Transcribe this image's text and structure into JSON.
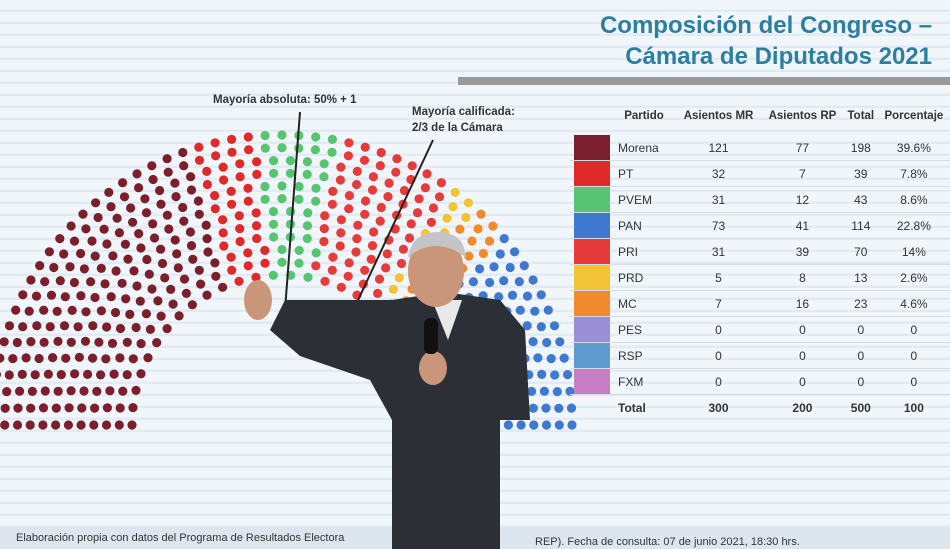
{
  "slide": {
    "title_line1": "Composición del Congreso –",
    "title_line2": "Cámara de Diputados 2021",
    "annotation_majority": "Mayoría absoluta: 50% + 1",
    "annotation_qualified_line1": "Mayoría calificada:",
    "annotation_qualified_line2": "2/3 de la Cámara",
    "footer_note": "Elaboración propia con datos del Programa de Resultados Electora",
    "footer_date": "REP). Fecha de consulta: 07 de junio 2021, 18:30 hrs."
  },
  "table": {
    "headers": {
      "party": "Partido",
      "mr": "Asientos MR",
      "rp": "Asientos RP",
      "total": "Total",
      "pct": "Porcentaje"
    },
    "rows": [
      {
        "party": "Morena",
        "mr": "121",
        "rp": "77",
        "total": "198",
        "pct": "39.6%",
        "color": "#7b1f2c"
      },
      {
        "party": "PT",
        "mr": "32",
        "rp": "7",
        "total": "39",
        "pct": "7.8%",
        "color": "#e02a2a"
      },
      {
        "party": "PVEM",
        "mr": "31",
        "rp": "12",
        "total": "43",
        "pct": "8.6%",
        "color": "#57c472"
      },
      {
        "party": "PAN",
        "mr": "73",
        "rp": "41",
        "total": "114",
        "pct": "22.8%",
        "color": "#3e79cf"
      },
      {
        "party": "PRI",
        "mr": "31",
        "rp": "39",
        "total": "70",
        "pct": "14%",
        "color": "#e53b3b"
      },
      {
        "party": "PRD",
        "mr": "5",
        "rp": "8",
        "total": "13",
        "pct": "2.6%",
        "color": "#f2c335"
      },
      {
        "party": "MC",
        "mr": "7",
        "rp": "16",
        "total": "23",
        "pct": "4.6%",
        "color": "#f08a2c"
      },
      {
        "party": "PES",
        "mr": "0",
        "rp": "0",
        "total": "0",
        "pct": "0",
        "color": "#9a8ed4"
      },
      {
        "party": "RSP",
        "mr": "0",
        "rp": "0",
        "total": "0",
        "pct": "0",
        "color": "#5e9bd1"
      },
      {
        "party": "FXM",
        "mr": "0",
        "rp": "0",
        "total": "0",
        "pct": "0",
        "color": "#c77ec4"
      }
    ],
    "total_row": {
      "label": "Total",
      "mr": "300",
      "rp": "200",
      "total": "500",
      "pct": "100"
    }
  },
  "seat_order": [
    "Morena",
    "PT",
    "PVEM",
    "PRI",
    "PRD",
    "MC",
    "PAN"
  ],
  "colors": {
    "title": "#2c7fa0",
    "suit": "#2c2f36"
  }
}
